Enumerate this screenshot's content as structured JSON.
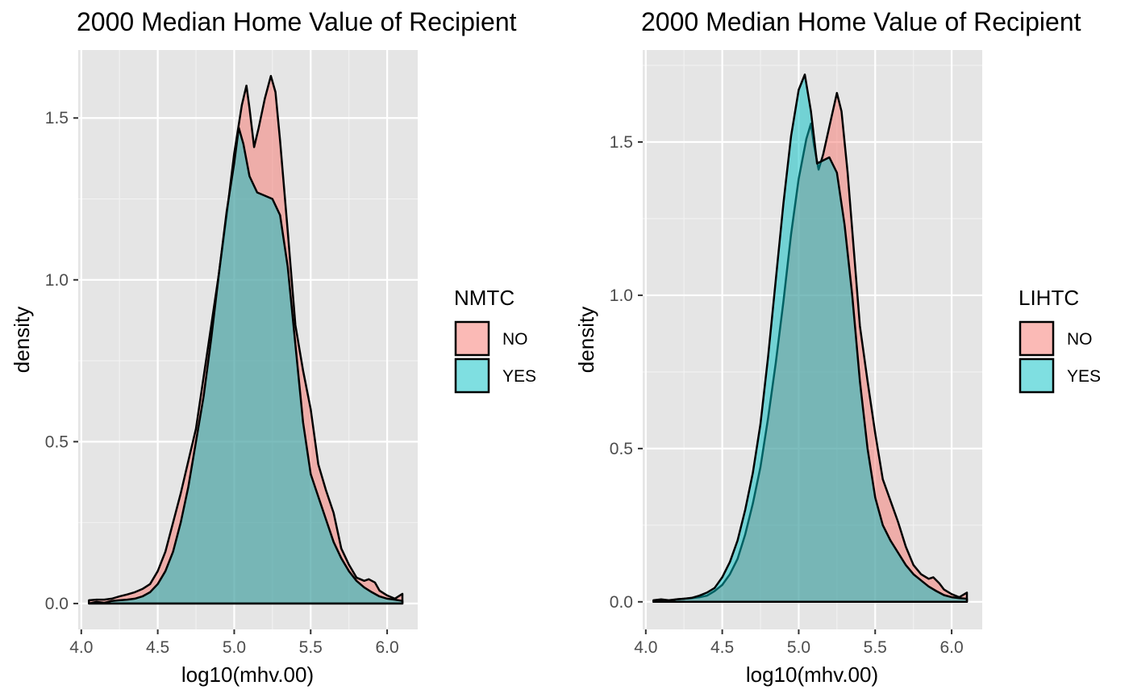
{
  "chart_data": [
    {
      "type": "area",
      "title": "2000 Median Home Value of Recipient",
      "xlabel": "log10(mhv.00)",
      "ylabel": "density",
      "xlim": [
        3.98,
        6.2
      ],
      "ylim": [
        -0.08,
        1.71
      ],
      "x_ticks": [
        "4.0",
        "4.5",
        "5.0",
        "5.5",
        "6.0"
      ],
      "y_ticks": [
        "0.0",
        "0.5",
        "1.0",
        "1.5"
      ],
      "grid": true,
      "legend": {
        "title": "NMTC",
        "position": "right",
        "entries": [
          "NO",
          "YES"
        ]
      },
      "series": [
        {
          "name": "NO",
          "color": "#F8766D",
          "points": [
            [
              4.05,
              0.01
            ],
            [
              4.1,
              0.012
            ],
            [
              4.15,
              0.012
            ],
            [
              4.2,
              0.015
            ],
            [
              4.25,
              0.022
            ],
            [
              4.3,
              0.028
            ],
            [
              4.35,
              0.035
            ],
            [
              4.4,
              0.045
            ],
            [
              4.45,
              0.06
            ],
            [
              4.5,
              0.1
            ],
            [
              4.55,
              0.16
            ],
            [
              4.6,
              0.25
            ],
            [
              4.65,
              0.34
            ],
            [
              4.7,
              0.44
            ],
            [
              4.75,
              0.54
            ],
            [
              4.8,
              0.7
            ],
            [
              4.85,
              0.86
            ],
            [
              4.9,
              1.02
            ],
            [
              4.95,
              1.2
            ],
            [
              5.0,
              1.39
            ],
            [
              5.05,
              1.54
            ],
            [
              5.08,
              1.6
            ],
            [
              5.1,
              1.53
            ],
            [
              5.13,
              1.41
            ],
            [
              5.16,
              1.47
            ],
            [
              5.2,
              1.56
            ],
            [
              5.24,
              1.63
            ],
            [
              5.27,
              1.58
            ],
            [
              5.3,
              1.43
            ],
            [
              5.35,
              1.15
            ],
            [
              5.4,
              0.86
            ],
            [
              5.45,
              0.72
            ],
            [
              5.5,
              0.6
            ],
            [
              5.55,
              0.43
            ],
            [
              5.6,
              0.35
            ],
            [
              5.65,
              0.28
            ],
            [
              5.7,
              0.17
            ],
            [
              5.75,
              0.12
            ],
            [
              5.8,
              0.08
            ],
            [
              5.85,
              0.07
            ],
            [
              5.88,
              0.075
            ],
            [
              5.92,
              0.065
            ],
            [
              5.95,
              0.04
            ],
            [
              6.0,
              0.025
            ],
            [
              6.05,
              0.015
            ],
            [
              6.1,
              0.03
            ]
          ]
        },
        {
          "name": "YES",
          "color": "#00BFC4",
          "points": [
            [
              4.05,
              0.0
            ],
            [
              4.1,
              0.005
            ],
            [
              4.15,
              0.002
            ],
            [
              4.2,
              0.008
            ],
            [
              4.25,
              0.01
            ],
            [
              4.3,
              0.012
            ],
            [
              4.35,
              0.015
            ],
            [
              4.4,
              0.022
            ],
            [
              4.45,
              0.035
            ],
            [
              4.5,
              0.06
            ],
            [
              4.55,
              0.1
            ],
            [
              4.6,
              0.16
            ],
            [
              4.65,
              0.25
            ],
            [
              4.7,
              0.36
            ],
            [
              4.75,
              0.5
            ],
            [
              4.8,
              0.64
            ],
            [
              4.85,
              0.82
            ],
            [
              4.9,
              1.02
            ],
            [
              4.95,
              1.21
            ],
            [
              5.0,
              1.36
            ],
            [
              5.03,
              1.47
            ],
            [
              5.06,
              1.42
            ],
            [
              5.1,
              1.32
            ],
            [
              5.15,
              1.27
            ],
            [
              5.2,
              1.26
            ],
            [
              5.25,
              1.25
            ],
            [
              5.3,
              1.2
            ],
            [
              5.35,
              1.04
            ],
            [
              5.4,
              0.8
            ],
            [
              5.45,
              0.56
            ],
            [
              5.5,
              0.4
            ],
            [
              5.55,
              0.33
            ],
            [
              5.6,
              0.26
            ],
            [
              5.65,
              0.19
            ],
            [
              5.7,
              0.14
            ],
            [
              5.75,
              0.1
            ],
            [
              5.8,
              0.07
            ],
            [
              5.85,
              0.05
            ],
            [
              5.9,
              0.035
            ],
            [
              5.95,
              0.022
            ],
            [
              6.0,
              0.015
            ],
            [
              6.05,
              0.012
            ],
            [
              6.1,
              0.008
            ]
          ]
        }
      ]
    },
    {
      "type": "area",
      "title": "2000 Median Home Value of Recipient",
      "xlabel": "log10(mhv.00)",
      "ylabel": "density",
      "xlim": [
        3.98,
        6.2
      ],
      "ylim": [
        -0.09,
        1.8
      ],
      "x_ticks": [
        "4.0",
        "4.5",
        "5.0",
        "5.5",
        "6.0"
      ],
      "y_ticks": [
        "0.0",
        "0.5",
        "1.0",
        "1.5"
      ],
      "grid": true,
      "legend": {
        "title": "LIHTC",
        "position": "right",
        "entries": [
          "NO",
          "YES"
        ]
      },
      "series": [
        {
          "name": "NO",
          "color": "#F8766D",
          "points": [
            [
              4.05,
              0.005
            ],
            [
              4.1,
              0.008
            ],
            [
              4.15,
              0.005
            ],
            [
              4.2,
              0.008
            ],
            [
              4.25,
              0.01
            ],
            [
              4.3,
              0.012
            ],
            [
              4.35,
              0.015
            ],
            [
              4.4,
              0.02
            ],
            [
              4.45,
              0.035
            ],
            [
              4.5,
              0.055
            ],
            [
              4.55,
              0.09
            ],
            [
              4.6,
              0.14
            ],
            [
              4.65,
              0.22
            ],
            [
              4.7,
              0.32
            ],
            [
              4.75,
              0.44
            ],
            [
              4.8,
              0.6
            ],
            [
              4.85,
              0.78
            ],
            [
              4.9,
              0.98
            ],
            [
              4.95,
              1.2
            ],
            [
              5.0,
              1.38
            ],
            [
              5.05,
              1.51
            ],
            [
              5.08,
              1.56
            ],
            [
              5.1,
              1.49
            ],
            [
              5.13,
              1.41
            ],
            [
              5.16,
              1.46
            ],
            [
              5.2,
              1.55
            ],
            [
              5.25,
              1.66
            ],
            [
              5.28,
              1.6
            ],
            [
              5.32,
              1.4
            ],
            [
              5.36,
              1.15
            ],
            [
              5.4,
              0.9
            ],
            [
              5.45,
              0.72
            ],
            [
              5.5,
              0.55
            ],
            [
              5.55,
              0.4
            ],
            [
              5.6,
              0.33
            ],
            [
              5.65,
              0.26
            ],
            [
              5.7,
              0.18
            ],
            [
              5.75,
              0.12
            ],
            [
              5.8,
              0.09
            ],
            [
              5.85,
              0.075
            ],
            [
              5.88,
              0.08
            ],
            [
              5.92,
              0.06
            ],
            [
              5.95,
              0.04
            ],
            [
              6.0,
              0.025
            ],
            [
              6.05,
              0.015
            ],
            [
              6.1,
              0.03
            ]
          ]
        },
        {
          "name": "YES",
          "color": "#00BFC4",
          "points": [
            [
              4.05,
              0.0
            ],
            [
              4.1,
              0.005
            ],
            [
              4.15,
              0.003
            ],
            [
              4.2,
              0.008
            ],
            [
              4.25,
              0.01
            ],
            [
              4.3,
              0.013
            ],
            [
              4.35,
              0.02
            ],
            [
              4.4,
              0.03
            ],
            [
              4.45,
              0.045
            ],
            [
              4.5,
              0.08
            ],
            [
              4.55,
              0.13
            ],
            [
              4.6,
              0.2
            ],
            [
              4.65,
              0.3
            ],
            [
              4.7,
              0.42
            ],
            [
              4.75,
              0.58
            ],
            [
              4.8,
              0.8
            ],
            [
              4.85,
              1.05
            ],
            [
              4.9,
              1.3
            ],
            [
              4.95,
              1.52
            ],
            [
              5.0,
              1.67
            ],
            [
              5.04,
              1.72
            ],
            [
              5.08,
              1.6
            ],
            [
              5.12,
              1.43
            ],
            [
              5.16,
              1.44
            ],
            [
              5.2,
              1.45
            ],
            [
              5.25,
              1.4
            ],
            [
              5.3,
              1.23
            ],
            [
              5.35,
              1.0
            ],
            [
              5.4,
              0.72
            ],
            [
              5.45,
              0.5
            ],
            [
              5.5,
              0.34
            ],
            [
              5.55,
              0.25
            ],
            [
              5.6,
              0.2
            ],
            [
              5.65,
              0.16
            ],
            [
              5.7,
              0.12
            ],
            [
              5.75,
              0.09
            ],
            [
              5.8,
              0.07
            ],
            [
              5.85,
              0.05
            ],
            [
              5.9,
              0.035
            ],
            [
              5.95,
              0.022
            ],
            [
              6.0,
              0.015
            ],
            [
              6.05,
              0.012
            ],
            [
              6.1,
              0.01
            ]
          ]
        }
      ]
    }
  ]
}
